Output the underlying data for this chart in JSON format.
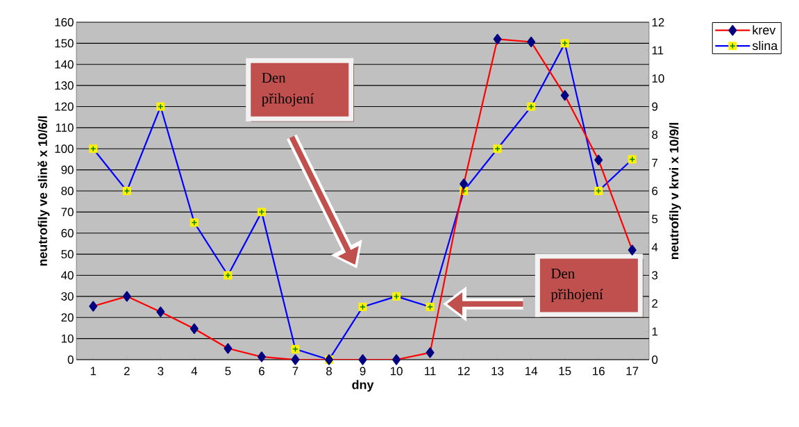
{
  "chart_data": {
    "type": "line",
    "xlabel": "dny",
    "ylabel": "neutrofily ve slině x 10/6/l",
    "y2label": "neutrofily v krvi x 10/9/l",
    "categories": [
      "1",
      "2",
      "3",
      "4",
      "5",
      "6",
      "7",
      "8",
      "9",
      "10",
      "11",
      "12",
      "13",
      "14",
      "15",
      "16",
      "17"
    ],
    "series": [
      {
        "name": "krev",
        "color": "#ff0000",
        "axis": "y2",
        "marker": "diamond",
        "values": [
          1.9,
          2.25,
          1.7,
          1.1,
          0.4,
          0.1,
          0,
          0,
          0,
          0,
          0.25,
          6.25,
          11.4,
          11.3,
          9.4,
          7.1,
          3.9
        ]
      },
      {
        "name": "slina",
        "color": "#0000ff",
        "marker": "square",
        "values": [
          100,
          80,
          120,
          65,
          40,
          70,
          5,
          0,
          25,
          30,
          25,
          80,
          100,
          120,
          150,
          80,
          95
        ]
      }
    ],
    "ylim": [
      0,
      160
    ],
    "yticks": [
      0,
      10,
      20,
      30,
      40,
      50,
      60,
      70,
      80,
      90,
      100,
      110,
      120,
      130,
      140,
      150,
      160
    ],
    "y2lim": [
      0,
      12
    ],
    "y2ticks": [
      0,
      1,
      2,
      3,
      4,
      5,
      6,
      7,
      8,
      9,
      10,
      11,
      12
    ],
    "grid": "y",
    "legend": "top right",
    "annotations": [
      "Den přihojení",
      "Den přihojení"
    ]
  }
}
